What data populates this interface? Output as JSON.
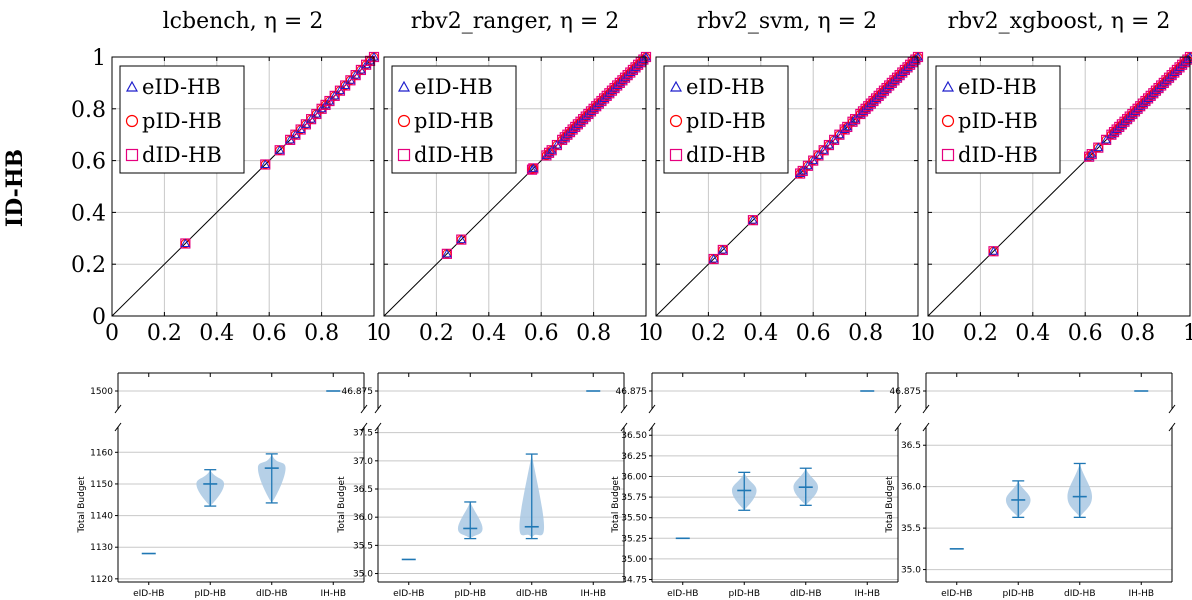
{
  "chart_data": {
    "top_panels": [
      {
        "title": "lcbench, η = 2",
        "type": "scatter",
        "xlim": [
          0,
          1
        ],
        "ylim": [
          0,
          1
        ],
        "xticks": [
          "0",
          "0.2",
          "0.4",
          "0.6",
          "0.8",
          "1"
        ],
        "yticks": [
          "0",
          "0.2",
          "0.4",
          "0.6",
          "0.8",
          "1"
        ],
        "ylabel": "ID-HB",
        "legend_position": "top-left",
        "series": [
          {
            "name": "eID-HB",
            "color": "#1f1fcc",
            "marker": "triangle"
          },
          {
            "name": "pID-HB",
            "color": "#ff0000",
            "marker": "circle"
          },
          {
            "name": "dID-HB",
            "color": "#e6007e",
            "marker": "square"
          }
        ],
        "points": [
          0.28,
          0.585,
          0.64,
          0.68,
          0.7,
          0.72,
          0.74,
          0.76,
          0.78,
          0.8,
          0.815,
          0.83,
          0.85,
          0.87,
          0.89,
          0.91,
          0.93,
          0.95,
          0.97,
          0.985,
          1.0
        ]
      },
      {
        "title": "rbv2_ranger, η = 2",
        "type": "scatter",
        "xlim": [
          0,
          1
        ],
        "ylim": [
          0,
          1
        ],
        "xticks": [
          "0",
          "0.2",
          "0.4",
          "0.6",
          "0.8",
          "1"
        ],
        "yticks": [
          "",
          "",
          "",
          "",
          "",
          ""
        ],
        "legend_position": "top-left",
        "series": [
          {
            "name": "eID-HB",
            "color": "#1f1fcc",
            "marker": "triangle"
          },
          {
            "name": "pID-HB",
            "color": "#ff0000",
            "marker": "circle"
          },
          {
            "name": "dID-HB",
            "color": "#e6007e",
            "marker": "square"
          }
        ],
        "points": [
          0.24,
          0.295,
          0.565,
          0.57,
          0.62,
          0.63,
          0.64,
          0.66,
          0.68,
          0.69,
          0.7,
          0.71,
          0.72,
          0.73,
          0.74,
          0.75,
          0.76,
          0.77,
          0.78,
          0.79,
          0.8,
          0.81,
          0.82,
          0.83,
          0.84,
          0.85,
          0.86,
          0.87,
          0.88,
          0.89,
          0.9,
          0.91,
          0.92,
          0.93,
          0.94,
          0.95,
          0.96,
          0.97,
          0.98,
          0.99,
          1.0
        ]
      },
      {
        "title": "rbv2_svm, η = 2",
        "type": "scatter",
        "xlim": [
          0,
          1
        ],
        "ylim": [
          0,
          1
        ],
        "xticks": [
          "0",
          "0.2",
          "0.4",
          "0.6",
          "0.8",
          "1"
        ],
        "yticks": [
          "",
          "",
          "",
          "",
          "",
          ""
        ],
        "legend_position": "top-left",
        "series": [
          {
            "name": "eID-HB",
            "color": "#1f1fcc",
            "marker": "triangle"
          },
          {
            "name": "pID-HB",
            "color": "#ff0000",
            "marker": "circle"
          },
          {
            "name": "dID-HB",
            "color": "#e6007e",
            "marker": "square"
          }
        ],
        "points": [
          0.22,
          0.255,
          0.37,
          0.55,
          0.56,
          0.58,
          0.6,
          0.62,
          0.64,
          0.66,
          0.68,
          0.7,
          0.72,
          0.73,
          0.75,
          0.76,
          0.78,
          0.79,
          0.8,
          0.81,
          0.82,
          0.83,
          0.84,
          0.85,
          0.86,
          0.87,
          0.88,
          0.89,
          0.9,
          0.91,
          0.92,
          0.93,
          0.94,
          0.95,
          0.96,
          0.97,
          0.98,
          0.99,
          1.0
        ]
      },
      {
        "title": "rbv2_xgboost, η = 2",
        "type": "scatter",
        "xlim": [
          0,
          1
        ],
        "ylim": [
          0,
          1
        ],
        "xticks": [
          "0",
          "0.2",
          "0.4",
          "0.6",
          "0.8",
          "1"
        ],
        "yticks": [
          "",
          "",
          "",
          "",
          "",
          ""
        ],
        "legend_position": "top-left",
        "series": [
          {
            "name": "eID-HB",
            "color": "#1f1fcc",
            "marker": "triangle"
          },
          {
            "name": "pID-HB",
            "color": "#ff0000",
            "marker": "circle"
          },
          {
            "name": "dID-HB",
            "color": "#e6007e",
            "marker": "square"
          }
        ],
        "points": [
          0.25,
          0.615,
          0.625,
          0.65,
          0.68,
          0.7,
          0.71,
          0.72,
          0.73,
          0.74,
          0.75,
          0.76,
          0.77,
          0.78,
          0.79,
          0.8,
          0.81,
          0.82,
          0.83,
          0.84,
          0.85,
          0.86,
          0.87,
          0.88,
          0.89,
          0.9,
          0.91,
          0.92,
          0.93,
          0.94,
          0.95,
          0.96,
          0.97,
          0.98,
          0.99,
          1.0
        ]
      }
    ],
    "bottom_panels": [
      {
        "type": "violin",
        "ylabel": "Total Budget",
        "categories": [
          "eID-HB",
          "pID-HB",
          "dID-HB",
          "IH-HB"
        ],
        "upper_ylim": [
          1498,
          1502
        ],
        "upper_yticks": [
          1500
        ],
        "upper_tick_labels": [
          "1500"
        ],
        "lower_ylim": [
          1119,
          1168
        ],
        "lower_yticks": [
          1120,
          1130,
          1140,
          1150,
          1160
        ],
        "lower_tick_labels": [
          "1120",
          "1130",
          "1140",
          "1150",
          "1160"
        ],
        "violins": [
          {
            "category": "eID-HB",
            "min": 1128,
            "median": 1128,
            "max": 1128,
            "width": 0
          },
          {
            "category": "pID-HB",
            "min": 1143,
            "median": 1150,
            "max": 1154.5,
            "width": 0.45
          },
          {
            "category": "dID-HB",
            "min": 1144,
            "median": 1155,
            "max": 1159.5,
            "width": 0.45
          },
          {
            "category": "IH-HB",
            "min": 1500,
            "median": 1500,
            "max": 1500,
            "width": 0
          }
        ]
      },
      {
        "type": "violin",
        "ylabel": "Total Budget",
        "categories": [
          "eID-HB",
          "pID-HB",
          "dID-HB",
          "IH-HB"
        ],
        "upper_ylim": [
          46.5,
          47.25
        ],
        "upper_yticks": [
          46.875
        ],
        "upper_tick_labels": [
          "46.875"
        ],
        "lower_ylim": [
          34.85,
          37.6
        ],
        "lower_yticks": [
          35.0,
          35.5,
          36.0,
          36.5,
          37.0,
          37.5
        ],
        "lower_tick_labels": [
          "35.0",
          "35.5",
          "36.0",
          "36.5",
          "37.0",
          "37.5"
        ],
        "violins": [
          {
            "category": "eID-HB",
            "min": 35.25,
            "median": 35.25,
            "max": 35.25,
            "width": 0
          },
          {
            "category": "pID-HB",
            "min": 35.62,
            "median": 35.8,
            "max": 36.27,
            "width": 0.4
          },
          {
            "category": "dID-HB",
            "min": 35.62,
            "median": 35.83,
            "max": 37.12,
            "width": 0.4
          },
          {
            "category": "IH-HB",
            "min": 46.875,
            "median": 46.875,
            "max": 46.875,
            "width": 0
          }
        ]
      },
      {
        "type": "violin",
        "ylabel": "Total Budget",
        "categories": [
          "eID-HB",
          "pID-HB",
          "dID-HB",
          "IH-HB"
        ],
        "upper_ylim": [
          46.5,
          47.25
        ],
        "upper_yticks": [
          46.875
        ],
        "upper_tick_labels": [
          "46.875"
        ],
        "lower_ylim": [
          34.72,
          36.6
        ],
        "lower_yticks": [
          34.75,
          35.0,
          35.25,
          35.5,
          35.75,
          36.0,
          36.25,
          36.5
        ],
        "lower_tick_labels": [
          "34.75",
          "35.00",
          "35.25",
          "35.50",
          "35.75",
          "36.00",
          "36.25",
          "36.50"
        ],
        "violins": [
          {
            "category": "eID-HB",
            "min": 35.25,
            "median": 35.25,
            "max": 35.25,
            "width": 0
          },
          {
            "category": "pID-HB",
            "min": 35.59,
            "median": 35.83,
            "max": 36.05,
            "width": 0.4
          },
          {
            "category": "dID-HB",
            "min": 35.65,
            "median": 35.87,
            "max": 36.1,
            "width": 0.4
          },
          {
            "category": "IH-HB",
            "min": 46.875,
            "median": 46.875,
            "max": 46.875,
            "width": 0
          }
        ]
      },
      {
        "type": "violin",
        "ylabel": "Total Budget",
        "categories": [
          "eID-HB",
          "pID-HB",
          "dID-HB",
          "IH-HB"
        ],
        "upper_ylim": [
          46.5,
          47.25
        ],
        "upper_yticks": [
          46.875
        ],
        "upper_tick_labels": [
          "46.875"
        ],
        "lower_ylim": [
          34.85,
          36.72
        ],
        "lower_yticks": [
          35.0,
          35.5,
          36.0,
          36.5
        ],
        "lower_tick_labels": [
          "35.0",
          "35.5",
          "36.0",
          "36.5"
        ],
        "violins": [
          {
            "category": "eID-HB",
            "min": 35.25,
            "median": 35.25,
            "max": 35.25,
            "width": 0
          },
          {
            "category": "pID-HB",
            "min": 35.63,
            "median": 35.84,
            "max": 36.07,
            "width": 0.4
          },
          {
            "category": "dID-HB",
            "min": 35.63,
            "median": 35.88,
            "max": 36.28,
            "width": 0.4
          },
          {
            "category": "IH-HB",
            "min": 46.875,
            "median": 46.875,
            "max": 46.875,
            "width": 0
          }
        ]
      }
    ],
    "colors": {
      "violin_fill": "#a9c8e3",
      "violin_line": "#1f77b4",
      "grid": "#c8c8c8",
      "diagonal": "#000000"
    }
  }
}
